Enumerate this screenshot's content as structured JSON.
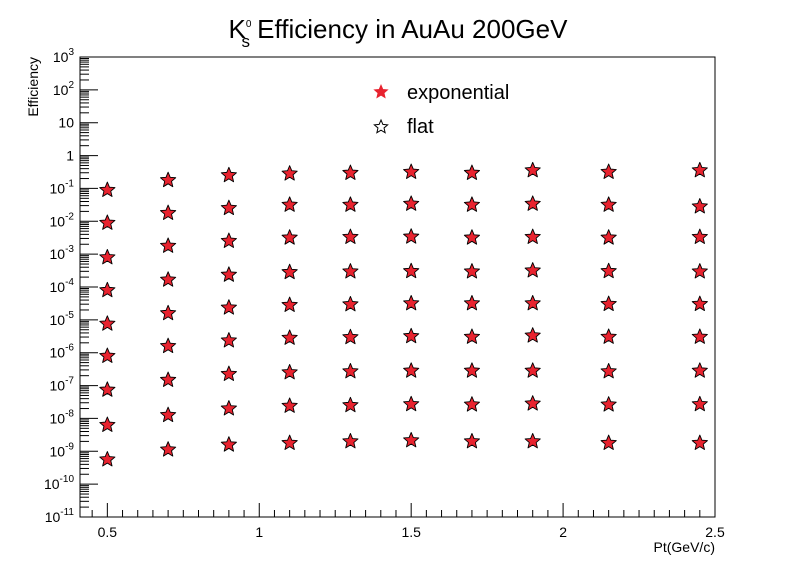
{
  "chart_data": {
    "type": "scatter",
    "title": {
      "base": "K",
      "sup": "0",
      "sub": "s",
      "rest": " Efficiency in AuAu 200GeV"
    },
    "xlabel": "Pt(GeV/c)",
    "ylabel": "Efficiency",
    "xlim": [
      0.41,
      2.5
    ],
    "ylim_log10": [
      -11,
      3
    ],
    "y_scale": "log",
    "grid": false,
    "legend_position": "top-center",
    "x_ticks": [
      {
        "value": 0.5,
        "label": "0.5"
      },
      {
        "value": 1.0,
        "label": "1"
      },
      {
        "value": 1.5,
        "label": "1.5"
      },
      {
        "value": 2.0,
        "label": "2"
      },
      {
        "value": 2.5,
        "label": "2.5"
      }
    ],
    "y_ticks": [
      {
        "exp": 3,
        "base": "10",
        "sup": "3"
      },
      {
        "exp": 2,
        "base": "10",
        "sup": "2"
      },
      {
        "exp": 1,
        "base": "10",
        "sup": ""
      },
      {
        "exp": 0,
        "base": "1",
        "sup": ""
      },
      {
        "exp": -1,
        "base": "10",
        "sup": "-1"
      },
      {
        "exp": -2,
        "base": "10",
        "sup": "-2"
      },
      {
        "exp": -3,
        "base": "10",
        "sup": "-3"
      },
      {
        "exp": -4,
        "base": "10",
        "sup": "-4"
      },
      {
        "exp": -5,
        "base": "10",
        "sup": "-5"
      },
      {
        "exp": -6,
        "base": "10",
        "sup": "-6"
      },
      {
        "exp": -7,
        "base": "10",
        "sup": "-7"
      },
      {
        "exp": -8,
        "base": "10",
        "sup": "-8"
      },
      {
        "exp": -9,
        "base": "10",
        "sup": "-9"
      },
      {
        "exp": -10,
        "base": "10",
        "sup": "-10"
      },
      {
        "exp": -11,
        "base": "10",
        "sup": "-11"
      }
    ],
    "x": [
      0.5,
      0.7,
      0.9,
      1.1,
      1.3,
      1.5,
      1.7,
      1.9,
      2.15,
      2.45
    ],
    "series": [
      {
        "name": "exponential",
        "marker": "filled-star",
        "color": "#e8232f",
        "values_log10": [
          -1.05,
          -0.75,
          -0.6,
          -0.55,
          -0.53,
          -0.5,
          -0.53,
          -0.45,
          -0.5,
          -0.45
        ]
      },
      {
        "marker": "filled-star",
        "color": "#e8232f",
        "values_log10": [
          -2.05,
          -1.75,
          -1.6,
          -1.5,
          -1.5,
          -1.47,
          -1.5,
          -1.47,
          -1.5,
          -1.55
        ]
      },
      {
        "marker": "filled-star",
        "color": "#e8232f",
        "values_log10": [
          -3.1,
          -2.75,
          -2.6,
          -2.5,
          -2.48,
          -2.47,
          -2.5,
          -2.48,
          -2.5,
          -2.48
        ]
      },
      {
        "marker": "filled-star",
        "color": "#e8232f",
        "values_log10": [
          -4.1,
          -3.78,
          -3.63,
          -3.55,
          -3.53,
          -3.52,
          -3.53,
          -3.5,
          -3.52,
          -3.53
        ]
      },
      {
        "marker": "filled-star",
        "color": "#e8232f",
        "values_log10": [
          -5.12,
          -4.8,
          -4.63,
          -4.55,
          -4.53,
          -4.5,
          -4.5,
          -4.5,
          -4.52,
          -4.52
        ]
      },
      {
        "marker": "filled-star",
        "color": "#e8232f",
        "values_log10": [
          -6.1,
          -5.8,
          -5.63,
          -5.55,
          -5.53,
          -5.5,
          -5.52,
          -5.48,
          -5.52,
          -5.52
        ]
      },
      {
        "marker": "filled-star",
        "color": "#e8232f",
        "values_log10": [
          -7.13,
          -6.83,
          -6.65,
          -6.6,
          -6.57,
          -6.55,
          -6.55,
          -6.55,
          -6.57,
          -6.55
        ]
      },
      {
        "marker": "filled-star",
        "color": "#e8232f",
        "values_log10": [
          -8.2,
          -7.9,
          -7.7,
          -7.62,
          -7.6,
          -7.57,
          -7.58,
          -7.55,
          -7.58,
          -7.57
        ]
      },
      {
        "marker": "filled-star",
        "color": "#e8232f",
        "values_log10": [
          -9.25,
          -8.95,
          -8.8,
          -8.75,
          -8.7,
          -8.67,
          -8.7,
          -8.7,
          -8.75,
          -8.75
        ]
      }
    ],
    "legend": [
      {
        "label": "exponential",
        "marker": "filled-star",
        "color": "#e8232f"
      },
      {
        "label": "flat",
        "marker": "open-star",
        "color": "#000000"
      }
    ]
  }
}
